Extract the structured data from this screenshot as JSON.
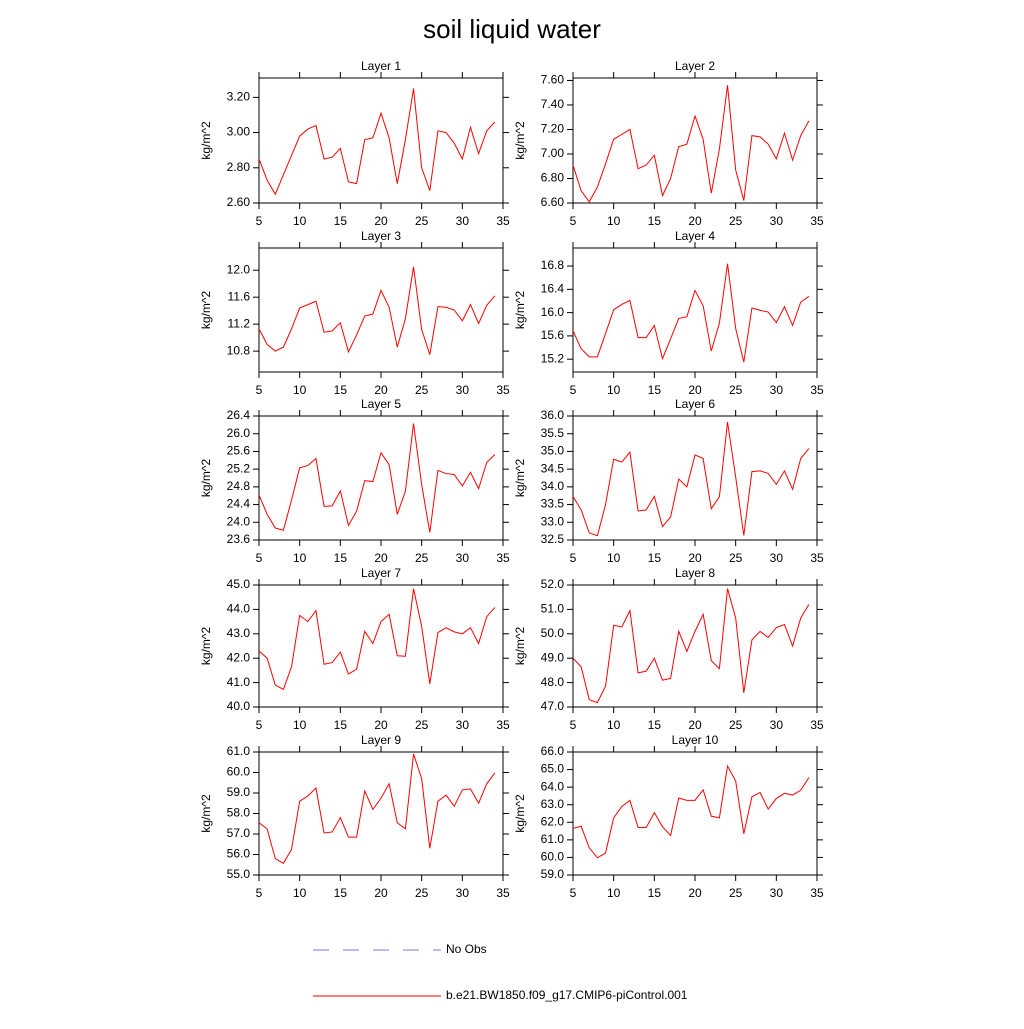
{
  "title": "soil liquid water",
  "legend": [
    {
      "name": "No Obs",
      "color": "#6f7fd0",
      "dashed": true
    },
    {
      "name": "b.e21.BW1850.f09_g17.CMIP6-piControl.001",
      "color": "#ff0000",
      "dashed": false
    }
  ],
  "chart_data": [
    {
      "type": "line",
      "title": "Layer 1",
      "ylabel": "kg/m^2",
      "color": "#ff0000",
      "x": [
        5,
        6,
        7,
        8,
        9,
        10,
        11,
        12,
        13,
        14,
        15,
        16,
        17,
        18,
        19,
        20,
        21,
        22,
        23,
        24,
        25,
        26,
        27,
        28,
        29,
        30,
        31,
        32,
        33,
        34
      ],
      "values": [
        2.85,
        2.73,
        2.65,
        2.76,
        2.87,
        2.98,
        3.02,
        3.04,
        2.85,
        2.86,
        2.91,
        2.72,
        2.71,
        2.96,
        2.97,
        3.11,
        2.97,
        2.71,
        2.96,
        3.25,
        2.8,
        2.67,
        3.01,
        3.0,
        2.94,
        2.85,
        3.03,
        2.88,
        3.01,
        3.06
      ],
      "xlim": [
        5,
        35
      ],
      "xticks": [
        5,
        10,
        15,
        20,
        25,
        30,
        35
      ],
      "ylim": [
        2.6,
        3.31
      ],
      "yticks": [
        {
          "value": 2.6,
          "label": "2.60"
        },
        {
          "value": 2.8,
          "label": "2.80"
        },
        {
          "value": 3.0,
          "label": "3.00"
        },
        {
          "value": 3.2,
          "label": "3.20"
        }
      ]
    },
    {
      "type": "line",
      "title": "Layer 2",
      "ylabel": "kg/m^2",
      "color": "#ff0000",
      "x": [
        5,
        6,
        7,
        8,
        9,
        10,
        11,
        12,
        13,
        14,
        15,
        16,
        17,
        18,
        19,
        20,
        21,
        22,
        23,
        24,
        25,
        26,
        27,
        28,
        29,
        30,
        31,
        32,
        33,
        34
      ],
      "values": [
        6.91,
        6.7,
        6.61,
        6.73,
        6.92,
        7.12,
        7.16,
        7.2,
        6.88,
        6.91,
        6.99,
        6.66,
        6.8,
        7.06,
        7.08,
        7.31,
        7.12,
        6.68,
        7.04,
        7.56,
        6.87,
        6.62,
        7.15,
        7.14,
        7.08,
        6.96,
        7.17,
        6.95,
        7.15,
        7.27
      ],
      "xlim": [
        5,
        35
      ],
      "xticks": [
        5,
        10,
        15,
        20,
        25,
        30,
        35
      ],
      "ylim": [
        6.6,
        7.62
      ],
      "yticks": [
        {
          "value": 6.6,
          "label": "6.60"
        },
        {
          "value": 6.8,
          "label": "6.80"
        },
        {
          "value": 7.0,
          "label": "7.00"
        },
        {
          "value": 7.2,
          "label": "7.20"
        },
        {
          "value": 7.4,
          "label": "7.40"
        },
        {
          "value": 7.6,
          "label": "7.60"
        }
      ]
    },
    {
      "type": "line",
      "title": "Layer 3",
      "ylabel": "kg/m^2",
      "color": "#ff0000",
      "x": [
        5,
        6,
        7,
        8,
        9,
        10,
        11,
        12,
        13,
        14,
        15,
        16,
        17,
        18,
        19,
        20,
        21,
        22,
        23,
        24,
        25,
        26,
        27,
        28,
        29,
        30,
        31,
        32,
        33,
        34
      ],
      "values": [
        11.13,
        10.9,
        10.8,
        10.86,
        11.13,
        11.44,
        11.49,
        11.54,
        11.08,
        11.1,
        11.22,
        10.79,
        11.04,
        11.32,
        11.35,
        11.7,
        11.45,
        10.86,
        11.28,
        12.05,
        11.12,
        10.75,
        11.46,
        11.45,
        11.41,
        11.25,
        11.49,
        11.21,
        11.48,
        11.62
      ],
      "xlim": [
        5,
        35
      ],
      "xticks": [
        5,
        10,
        15,
        20,
        25,
        30,
        35
      ],
      "ylim": [
        10.49,
        12.33
      ],
      "yticks": [
        10.8,
        11.2,
        11.6,
        {
          "value": 12.0,
          "label": "12.0"
        }
      ]
    },
    {
      "type": "line",
      "title": "Layer 4",
      "ylabel": "kg/m^2",
      "color": "#ff0000",
      "x": [
        5,
        6,
        7,
        8,
        9,
        10,
        11,
        12,
        13,
        14,
        15,
        16,
        17,
        18,
        19,
        20,
        21,
        22,
        23,
        24,
        25,
        26,
        27,
        28,
        29,
        30,
        31,
        32,
        33,
        34
      ],
      "values": [
        15.69,
        15.38,
        15.24,
        15.24,
        15.64,
        16.05,
        16.14,
        16.21,
        15.57,
        15.57,
        15.78,
        15.21,
        15.55,
        15.9,
        15.93,
        16.38,
        16.12,
        15.34,
        15.82,
        16.84,
        15.73,
        15.15,
        16.08,
        16.04,
        16.01,
        15.83,
        16.1,
        15.78,
        16.18,
        16.28
      ],
      "xlim": [
        5,
        35
      ],
      "xticks": [
        5,
        10,
        15,
        20,
        25,
        30,
        35
      ],
      "ylim": [
        14.98,
        17.11
      ],
      "yticks": [
        15.2,
        15.6,
        {
          "value": 16.0,
          "label": "16.0"
        },
        16.4,
        16.8
      ]
    },
    {
      "type": "line",
      "title": "Layer 5",
      "ylabel": "kg/m^2",
      "color": "#ff0000",
      "x": [
        5,
        6,
        7,
        8,
        9,
        10,
        11,
        12,
        13,
        14,
        15,
        16,
        17,
        18,
        19,
        20,
        21,
        22,
        23,
        24,
        25,
        26,
        27,
        28,
        29,
        30,
        31,
        32,
        33,
        34
      ],
      "values": [
        24.62,
        24.18,
        23.87,
        23.82,
        24.5,
        25.23,
        25.28,
        25.44,
        24.36,
        24.37,
        24.71,
        23.93,
        24.25,
        24.94,
        24.92,
        25.57,
        25.3,
        24.18,
        24.7,
        26.23,
        24.85,
        23.77,
        25.17,
        25.1,
        25.08,
        24.82,
        25.13,
        24.76,
        25.35,
        25.53
      ],
      "xlim": [
        5,
        35
      ],
      "xticks": [
        5,
        10,
        15,
        20,
        25,
        30,
        35
      ],
      "ylim": [
        23.6,
        26.4
      ],
      "yticks": [
        23.6,
        {
          "value": 24.0,
          "label": "24.0"
        },
        24.4,
        24.8,
        25.2,
        25.6,
        {
          "value": 26.0,
          "label": "26.0"
        },
        26.4
      ]
    },
    {
      "type": "line",
      "title": "Layer 6",
      "ylabel": "kg/m^2",
      "color": "#ff0000",
      "x": [
        5,
        6,
        7,
        8,
        9,
        10,
        11,
        12,
        13,
        14,
        15,
        16,
        17,
        18,
        19,
        20,
        21,
        22,
        23,
        24,
        25,
        26,
        27,
        28,
        29,
        30,
        31,
        32,
        33,
        34
      ],
      "values": [
        33.73,
        33.35,
        32.7,
        32.62,
        33.5,
        34.78,
        34.7,
        34.98,
        33.32,
        33.35,
        33.73,
        32.88,
        33.15,
        34.22,
        34.0,
        34.9,
        34.8,
        33.38,
        33.72,
        35.83,
        34.28,
        32.63,
        34.43,
        34.45,
        34.38,
        34.07,
        34.45,
        33.93,
        34.8,
        35.08
      ],
      "xlim": [
        5,
        35
      ],
      "xticks": [
        5,
        10,
        15,
        20,
        25,
        30,
        35
      ],
      "ylim": [
        32.5,
        36.0
      ],
      "yticks": [
        32.5,
        {
          "value": 33.0,
          "label": "33.0"
        },
        33.5,
        {
          "value": 34.0,
          "label": "34.0"
        },
        34.5,
        {
          "value": 35.0,
          "label": "35.0"
        },
        35.5,
        {
          "value": 36.0,
          "label": "36.0"
        }
      ]
    },
    {
      "type": "line",
      "title": "Layer 7",
      "ylabel": "kg/m^2",
      "color": "#ff0000",
      "x": [
        5,
        6,
        7,
        8,
        9,
        10,
        11,
        12,
        13,
        14,
        15,
        16,
        17,
        18,
        19,
        20,
        21,
        22,
        23,
        24,
        25,
        26,
        27,
        28,
        29,
        30,
        31,
        32,
        33,
        34
      ],
      "values": [
        42.3,
        42.0,
        40.9,
        40.72,
        41.65,
        43.75,
        43.5,
        43.95,
        41.75,
        41.82,
        42.25,
        41.35,
        41.55,
        43.1,
        42.6,
        43.5,
        43.8,
        42.1,
        42.08,
        44.85,
        43.3,
        40.95,
        43.05,
        43.25,
        43.08,
        43.0,
        43.25,
        42.6,
        43.7,
        44.08
      ],
      "xlim": [
        5,
        35
      ],
      "xticks": [
        5,
        10,
        15,
        20,
        25,
        30,
        35
      ],
      "ylim": [
        40.0,
        45.0
      ],
      "yticks": [
        {
          "value": 40,
          "label": "40.0"
        },
        {
          "value": 41,
          "label": "41.0"
        },
        {
          "value": 42,
          "label": "42.0"
        },
        {
          "value": 43,
          "label": "43.0"
        },
        {
          "value": 44,
          "label": "44.0"
        },
        {
          "value": 45,
          "label": "45.0"
        }
      ]
    },
    {
      "type": "line",
      "title": "Layer 8",
      "ylabel": "kg/m^2",
      "color": "#ff0000",
      "x": [
        5,
        6,
        7,
        8,
        9,
        10,
        11,
        12,
        13,
        14,
        15,
        16,
        17,
        18,
        19,
        20,
        21,
        22,
        23,
        24,
        25,
        26,
        27,
        28,
        29,
        30,
        31,
        32,
        33,
        34
      ],
      "values": [
        49.0,
        48.65,
        47.3,
        47.18,
        47.85,
        50.35,
        50.28,
        50.95,
        48.4,
        48.47,
        49.0,
        48.1,
        48.17,
        50.1,
        49.28,
        50.1,
        50.8,
        48.9,
        48.57,
        51.85,
        50.65,
        47.58,
        49.75,
        50.1,
        49.85,
        50.25,
        50.38,
        49.5,
        50.65,
        51.2
      ],
      "xlim": [
        5,
        35
      ],
      "xticks": [
        5,
        10,
        15,
        20,
        25,
        30,
        35
      ],
      "ylim": [
        47.0,
        52.0
      ],
      "yticks": [
        {
          "value": 47,
          "label": "47.0"
        },
        {
          "value": 48,
          "label": "48.0"
        },
        {
          "value": 49,
          "label": "49.0"
        },
        {
          "value": 50,
          "label": "50.0"
        },
        {
          "value": 51,
          "label": "51.0"
        },
        {
          "value": 52,
          "label": "52.0"
        }
      ]
    },
    {
      "type": "line",
      "title": "Layer 9",
      "ylabel": "kg/m^2",
      "color": "#ff0000",
      "x": [
        5,
        6,
        7,
        8,
        9,
        10,
        11,
        12,
        13,
        14,
        15,
        16,
        17,
        18,
        19,
        20,
        21,
        22,
        23,
        24,
        25,
        26,
        27,
        28,
        29,
        30,
        31,
        32,
        33,
        34
      ],
      "values": [
        57.55,
        57.25,
        55.8,
        55.57,
        56.25,
        58.6,
        58.85,
        59.25,
        57.05,
        57.1,
        57.8,
        56.85,
        56.85,
        59.1,
        58.2,
        58.75,
        59.45,
        57.55,
        57.25,
        60.9,
        59.7,
        56.3,
        58.6,
        58.9,
        58.35,
        59.15,
        59.2,
        58.5,
        59.45,
        59.98
      ],
      "xlim": [
        5,
        35
      ],
      "xticks": [
        5,
        10,
        15,
        20,
        25,
        30,
        35
      ],
      "ylim": [
        55.0,
        61.0
      ],
      "yticks": [
        {
          "value": 55,
          "label": "55.0"
        },
        {
          "value": 56,
          "label": "56.0"
        },
        {
          "value": 57,
          "label": "57.0"
        },
        {
          "value": 58,
          "label": "58.0"
        },
        {
          "value": 59,
          "label": "59.0"
        },
        {
          "value": 60,
          "label": "60.0"
        },
        {
          "value": 61,
          "label": "61.0"
        }
      ]
    },
    {
      "type": "line",
      "title": "Layer 10",
      "ylabel": "kg/m^2",
      "color": "#ff0000",
      "x": [
        5,
        6,
        7,
        8,
        9,
        10,
        11,
        12,
        13,
        14,
        15,
        16,
        17,
        18,
        19,
        20,
        21,
        22,
        23,
        24,
        25,
        26,
        27,
        28,
        29,
        30,
        31,
        32,
        33,
        34
      ],
      "values": [
        61.65,
        61.78,
        60.55,
        59.98,
        60.25,
        62.25,
        62.9,
        63.25,
        61.7,
        61.7,
        62.55,
        61.75,
        61.25,
        63.38,
        63.25,
        63.25,
        63.85,
        62.35,
        62.25,
        65.2,
        64.35,
        61.35,
        63.45,
        63.7,
        62.75,
        63.35,
        63.65,
        63.55,
        63.82,
        64.55
      ],
      "xlim": [
        5,
        35
      ],
      "xticks": [
        5,
        10,
        15,
        20,
        25,
        30,
        35
      ],
      "ylim": [
        59.0,
        66.0
      ],
      "yticks": [
        {
          "value": 59,
          "label": "59.0"
        },
        {
          "value": 60,
          "label": "60.0"
        },
        {
          "value": 61,
          "label": "61.0"
        },
        {
          "value": 62,
          "label": "62.0"
        },
        {
          "value": 63,
          "label": "63.0"
        },
        {
          "value": 64,
          "label": "64.0"
        },
        {
          "value": 65,
          "label": "65.0"
        },
        {
          "value": 66,
          "label": "66.0"
        }
      ]
    }
  ]
}
